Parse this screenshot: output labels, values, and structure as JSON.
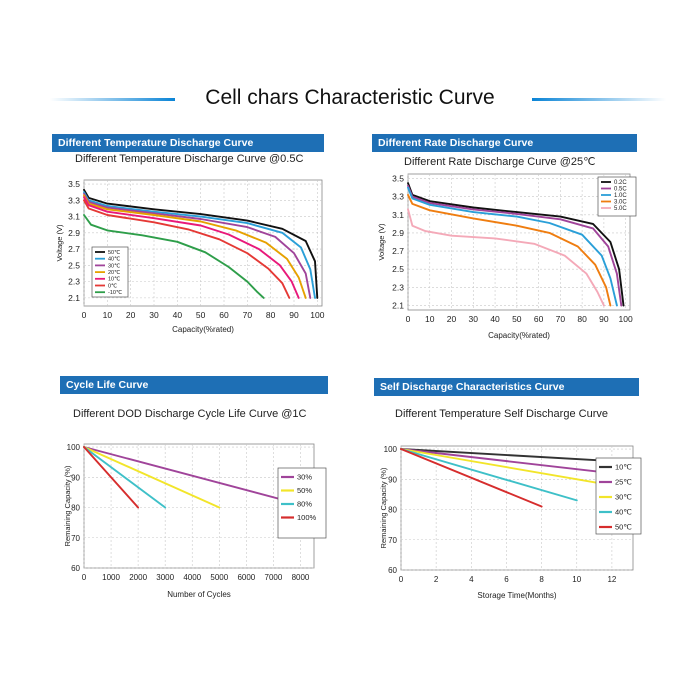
{
  "page_title": "Cell chars Characteristic Curve",
  "colors": {
    "header_bg": "#1e6fb5",
    "accent_line": "#0a84d6"
  },
  "chart_data": [
    {
      "id": "temp",
      "type": "line",
      "header": "Different Temperature Discharge Curve",
      "title": "Different Temperature Discharge Curve @0.5C",
      "xlabel": "Capacity(%rated)",
      "ylabel": "Voltage (V)",
      "xlim": [
        0,
        102
      ],
      "ylim": [
        2.0,
        3.55
      ],
      "xticks": [
        0,
        10,
        20,
        30,
        40,
        50,
        60,
        70,
        80,
        90,
        100
      ],
      "yticks": [
        2.1,
        2.3,
        2.5,
        2.7,
        2.9,
        3.1,
        3.3,
        3.5
      ],
      "grid": true,
      "legend_position": "bottom-left",
      "series": [
        {
          "name": "50℃",
          "color": "#111111",
          "x": [
            0,
            2,
            10,
            30,
            50,
            70,
            85,
            95,
            99,
            100
          ],
          "y": [
            3.43,
            3.33,
            3.26,
            3.19,
            3.13,
            3.05,
            2.95,
            2.8,
            2.55,
            2.1
          ]
        },
        {
          "name": "40℃",
          "color": "#2a9fd8",
          "x": [
            0,
            2,
            10,
            30,
            50,
            70,
            85,
            93,
            97,
            99
          ],
          "y": [
            3.4,
            3.3,
            3.23,
            3.16,
            3.1,
            3.02,
            2.9,
            2.72,
            2.45,
            2.1
          ]
        },
        {
          "name": "30℃",
          "color": "#a0449a",
          "x": [
            0,
            2,
            10,
            30,
            50,
            70,
            82,
            90,
            95,
            97
          ],
          "y": [
            3.38,
            3.28,
            3.21,
            3.14,
            3.07,
            2.97,
            2.85,
            2.65,
            2.4,
            2.1
          ]
        },
        {
          "name": "20℃",
          "color": "#e6a100",
          "x": [
            0,
            2,
            10,
            30,
            50,
            65,
            78,
            87,
            92,
            95
          ],
          "y": [
            3.36,
            3.26,
            3.19,
            3.12,
            3.04,
            2.93,
            2.78,
            2.58,
            2.35,
            2.1
          ]
        },
        {
          "name": "10℃",
          "color": "#e8197a",
          "x": [
            0,
            2,
            10,
            30,
            50,
            62,
            75,
            84,
            89,
            92
          ],
          "y": [
            3.34,
            3.24,
            3.16,
            3.08,
            2.99,
            2.88,
            2.7,
            2.5,
            2.3,
            2.1
          ]
        },
        {
          "name": "0℃",
          "color": "#e53935",
          "x": [
            0,
            2,
            10,
            30,
            45,
            58,
            70,
            79,
            85,
            88
          ],
          "y": [
            3.3,
            3.2,
            3.12,
            3.03,
            2.94,
            2.82,
            2.65,
            2.46,
            2.28,
            2.1
          ]
        },
        {
          "name": "-10℃",
          "color": "#2e9e4a",
          "x": [
            0,
            3,
            10,
            25,
            40,
            52,
            62,
            70,
            74,
            77
          ],
          "y": [
            3.12,
            3.0,
            2.93,
            2.87,
            2.79,
            2.66,
            2.48,
            2.3,
            2.18,
            2.1
          ]
        }
      ]
    },
    {
      "id": "rate",
      "type": "line",
      "header": "Different Rate Discharge Curve",
      "title": "Different Rate Discharge Curve @25℃",
      "xlabel": "Capacity(%rated)",
      "ylabel": "Voltage (V)",
      "xlim": [
        0,
        102
      ],
      "ylim": [
        2.05,
        3.55
      ],
      "xticks": [
        0,
        10,
        20,
        30,
        40,
        50,
        60,
        70,
        80,
        90,
        100
      ],
      "yticks": [
        2.1,
        2.3,
        2.5,
        2.7,
        2.9,
        3.1,
        3.3,
        3.5
      ],
      "grid": true,
      "legend_position": "top-right",
      "series": [
        {
          "name": "0.2C",
          "color": "#111111",
          "x": [
            0,
            2,
            10,
            30,
            50,
            70,
            85,
            93,
            97,
            99
          ],
          "y": [
            3.45,
            3.32,
            3.25,
            3.18,
            3.13,
            3.08,
            3.0,
            2.8,
            2.5,
            2.1
          ]
        },
        {
          "name": "0.5C",
          "color": "#a0449a",
          "x": [
            0,
            2,
            10,
            30,
            50,
            70,
            85,
            92,
            96,
            98
          ],
          "y": [
            3.42,
            3.3,
            3.23,
            3.16,
            3.11,
            3.05,
            2.95,
            2.75,
            2.45,
            2.1
          ]
        },
        {
          "name": "1.0C",
          "color": "#2a9fd8",
          "x": [
            0,
            2,
            10,
            30,
            50,
            65,
            80,
            89,
            93,
            96
          ],
          "y": [
            3.4,
            3.28,
            3.21,
            3.13,
            3.08,
            3.01,
            2.88,
            2.65,
            2.4,
            2.1
          ]
        },
        {
          "name": "3.0C",
          "color": "#ef7d10",
          "x": [
            0,
            2,
            10,
            30,
            50,
            65,
            78,
            86,
            91,
            93
          ],
          "y": [
            3.32,
            3.22,
            3.15,
            3.06,
            2.98,
            2.9,
            2.75,
            2.55,
            2.3,
            2.1
          ]
        },
        {
          "name": "5.0C",
          "color": "#f4a9b8",
          "x": [
            0,
            2,
            8,
            20,
            40,
            58,
            72,
            82,
            87,
            90
          ],
          "y": [
            3.16,
            2.98,
            2.92,
            2.87,
            2.84,
            2.78,
            2.65,
            2.45,
            2.25,
            2.1
          ]
        }
      ]
    },
    {
      "id": "cycle",
      "type": "line",
      "header": "Cycle Life Curve",
      "title": "Different DOD Discharge Cycle Life Curve @1C",
      "xlabel": "Number of Cycles",
      "ylabel": "Remaining Capacity (%)",
      "xlim": [
        0,
        8500
      ],
      "ylim": [
        60,
        101
      ],
      "xticks": [
        0,
        1000,
        2000,
        3000,
        4000,
        5000,
        6000,
        7000,
        8000
      ],
      "yticks": [
        60,
        70,
        80,
        90,
        100
      ],
      "grid": true,
      "legend_position": "right",
      "series": [
        {
          "name": "30%",
          "color": "#a0449a",
          "x": [
            0,
            8000
          ],
          "y": [
            100,
            81
          ]
        },
        {
          "name": "50%",
          "color": "#f2e52a",
          "x": [
            0,
            5000
          ],
          "y": [
            100,
            80
          ]
        },
        {
          "name": "80%",
          "color": "#3ec0c8",
          "x": [
            0,
            3000
          ],
          "y": [
            100,
            80
          ]
        },
        {
          "name": "100%",
          "color": "#d62d2d",
          "x": [
            0,
            2000
          ],
          "y": [
            100,
            80
          ]
        }
      ]
    },
    {
      "id": "self",
      "type": "line",
      "header": "Self Discharge Characteristics Curve",
      "title": "Different Temperature Self Discharge Curve",
      "xlabel": "Storage Time(Months)",
      "ylabel": "Remaining Capacity (%)",
      "xlim": [
        0,
        13.2
      ],
      "ylim": [
        60,
        101
      ],
      "xticks": [
        0,
        2,
        4,
        6,
        8,
        10,
        12
      ],
      "yticks": [
        60,
        70,
        80,
        90,
        100
      ],
      "grid": true,
      "legend_position": "right",
      "series": [
        {
          "name": "10℃",
          "color": "#333333",
          "x": [
            0,
            12
          ],
          "y": [
            100,
            96
          ]
        },
        {
          "name": "25℃",
          "color": "#a0449a",
          "x": [
            0,
            12
          ],
          "y": [
            100,
            92
          ]
        },
        {
          "name": "30℃",
          "color": "#f2e52a",
          "x": [
            0,
            12
          ],
          "y": [
            100,
            88
          ]
        },
        {
          "name": "40℃",
          "color": "#3ec0c8",
          "x": [
            0,
            10
          ],
          "y": [
            100,
            83
          ]
        },
        {
          "name": "50℃",
          "color": "#d62d2d",
          "x": [
            0,
            8
          ],
          "y": [
            100,
            81
          ]
        }
      ]
    }
  ]
}
